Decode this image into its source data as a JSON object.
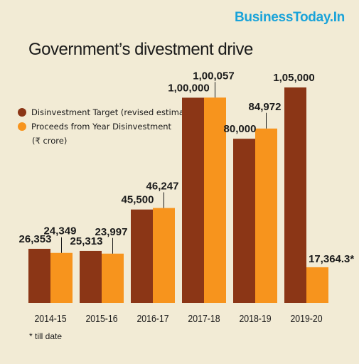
{
  "brand": "BusinessToday.In",
  "colors": {
    "target": "#8b3616",
    "proceeds": "#f7941d",
    "background": "#f2ebd5"
  },
  "legend": {
    "target_label": "Disinvestment Target (revised estimate)",
    "proceeds_label": "Proceeds from Year Disinvestment",
    "unit": "(₹ crore)"
  },
  "footnote": "* till date",
  "chart_data": {
    "type": "bar",
    "title": "Government’s divestment drive",
    "categories": [
      "2014-15",
      "2015-16",
      "2016-17",
      "2017-18",
      "2018-19",
      "2019-20"
    ],
    "series": [
      {
        "name": "Disinvestment Target (revised estimate)",
        "values": [
          26353,
          25313,
          45500,
          100000,
          80000,
          105000
        ],
        "labels": [
          "26,353",
          "25,313",
          "45,500",
          "1,00,000",
          "80,000",
          "1,05,000"
        ]
      },
      {
        "name": "Proceeds from Year Disinvestment",
        "values": [
          24349,
          23997,
          46247,
          100057,
          84972,
          17364.3
        ],
        "labels": [
          "24,349",
          "23,997",
          "46,247",
          "1,00,057",
          "84,972",
          "17,364.3*"
        ]
      }
    ],
    "unit": "₹ crore",
    "ylim": [
      0,
      110000
    ],
    "grid": false,
    "legend_position": "top-left"
  }
}
